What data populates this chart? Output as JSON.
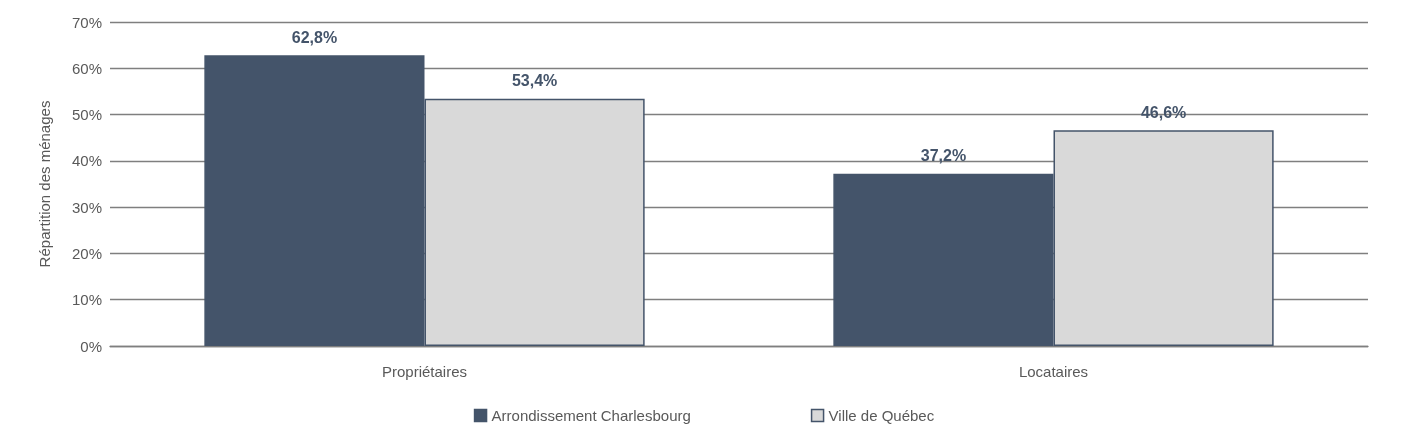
{
  "chart_data": {
    "type": "bar",
    "ylabel": "Répartition des ménages",
    "categories": [
      "Propriétaires",
      "Locataires"
    ],
    "series": [
      {
        "name": "Arrondissement Charlesbourg",
        "color": "#44546a",
        "values": [
          62.8,
          37.2
        ],
        "value_labels": [
          "62,8%",
          "37,2%"
        ]
      },
      {
        "name": "Ville de Québec",
        "color": "#d9d9d9",
        "values": [
          53.4,
          46.6
        ],
        "value_labels": [
          "53,4%",
          "46,6%"
        ]
      }
    ],
    "ylim": [
      0,
      70
    ],
    "yticks": [
      {
        "value": 0,
        "label": "0%"
      },
      {
        "value": 10,
        "label": "10%"
      },
      {
        "value": 20,
        "label": "20%"
      },
      {
        "value": 30,
        "label": "30%"
      },
      {
        "value": 40,
        "label": "40%"
      },
      {
        "value": 50,
        "label": "50%"
      },
      {
        "value": 60,
        "label": "60%"
      },
      {
        "value": 70,
        "label": "70%"
      }
    ],
    "grid": "y",
    "legend": "bottom"
  }
}
